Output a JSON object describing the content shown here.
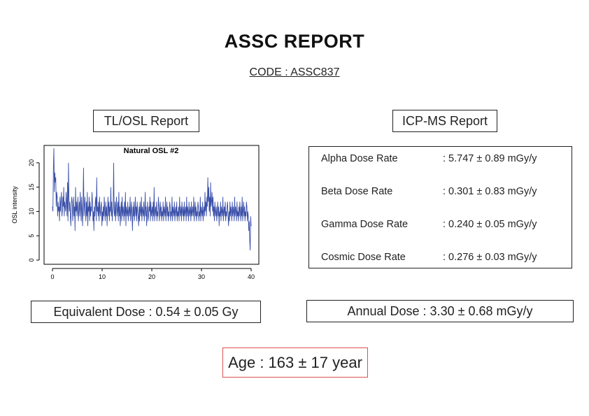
{
  "report": {
    "title": "ASSC REPORT",
    "code": "CODE : ASSC837"
  },
  "tl_osl": {
    "label": "TL/OSL Report"
  },
  "icp_ms": {
    "label": "ICP-MS Report",
    "rows": [
      {
        "label": "Alpha Dose Rate",
        "value": ": 5.747 ± 0.89 mGy/y"
      },
      {
        "label": "Beta Dose Rate",
        "value": ": 0.301 ± 0.83 mGy/y"
      },
      {
        "label": "Gamma Dose Rate",
        "value": ": 0.240 ± 0.05 mGy/y"
      },
      {
        "label": "Cosmic Dose Rate",
        "value": ": 0.276 ± 0.03 mGy/y"
      }
    ]
  },
  "results": {
    "equivalent_dose": "Equivalent Dose : 0.54 ± 0.05 Gy",
    "annual_dose": "Annual Dose : 3.30 ± 0.68 mGy/y",
    "age": "Age : 163 ± 17 year",
    "age_border_color": "#d9534f"
  },
  "chart_data": {
    "type": "line",
    "title": "Natural OSL #2",
    "xlabel": "",
    "ylabel": "OSL intensity",
    "xlim": [
      0,
      40
    ],
    "ylim": [
      0,
      23
    ],
    "xticks": [
      0,
      10,
      20,
      30,
      40
    ],
    "yticks": [
      0,
      5,
      10,
      15,
      20
    ],
    "line_color": "#3a4fa8",
    "grid": false,
    "x_step": 0.1,
    "y": [
      11,
      10,
      19,
      23,
      14,
      18,
      16,
      17,
      11,
      14,
      13,
      9,
      12,
      10,
      11,
      8,
      13,
      10,
      12,
      14,
      9,
      10,
      13,
      11,
      15,
      9,
      12,
      11,
      10,
      14,
      12,
      9,
      16,
      8,
      20,
      13,
      10,
      12,
      9,
      7,
      11,
      13,
      12,
      8,
      10,
      13,
      9,
      11,
      6,
      15,
      10,
      12,
      9,
      11,
      13,
      8,
      10,
      12,
      9,
      14,
      11,
      8,
      13,
      10,
      7,
      12,
      19,
      9,
      11,
      13,
      10,
      8,
      12,
      9,
      14,
      7,
      11,
      10,
      13,
      8,
      12,
      9,
      11,
      10,
      14,
      12,
      8,
      10,
      6,
      11,
      9,
      12,
      13,
      8,
      17,
      10,
      11,
      9,
      12,
      8,
      13,
      10,
      9,
      11,
      12,
      7,
      10,
      8,
      11,
      9,
      13,
      10,
      8,
      12,
      9,
      11,
      7,
      10,
      13,
      9,
      12,
      8,
      11,
      10,
      15,
      9,
      12,
      8,
      10,
      11,
      20,
      10,
      9,
      12,
      8,
      11,
      13,
      9,
      10,
      12,
      8,
      14,
      9,
      11,
      7,
      10,
      12,
      8,
      13,
      9,
      11,
      10,
      8,
      12,
      9,
      14,
      7,
      11,
      10,
      9,
      12,
      8,
      10,
      11,
      9,
      13,
      8,
      10,
      12,
      9,
      6,
      11,
      9,
      12,
      8,
      10,
      13,
      9,
      11,
      8,
      12,
      10,
      9,
      7,
      11,
      8,
      12,
      10,
      9,
      13,
      8,
      11,
      10,
      9,
      12,
      8,
      10,
      14,
      9,
      11,
      7,
      10,
      12,
      8,
      9,
      11,
      10,
      13,
      8,
      12,
      9,
      10,
      11,
      8,
      12,
      9,
      15,
      8,
      10,
      11,
      9,
      12,
      8,
      10,
      9,
      13,
      11,
      8,
      10,
      12,
      9,
      11,
      8,
      10,
      9,
      12,
      8,
      11,
      10,
      9,
      13,
      8,
      10,
      12,
      9,
      11,
      8,
      10,
      9,
      12,
      11,
      8,
      10,
      9,
      13,
      8,
      11,
      10,
      9,
      12,
      8,
      10,
      11,
      9,
      12,
      8,
      10,
      9,
      11,
      8,
      13,
      10,
      9,
      11,
      8,
      12,
      10,
      9,
      11,
      8,
      12,
      9,
      10,
      11,
      8,
      13,
      9,
      11,
      10,
      8,
      12,
      9,
      10,
      11,
      8,
      12,
      9,
      10,
      11,
      9,
      13,
      8,
      10,
      12,
      9,
      11,
      8,
      10,
      9,
      12,
      11,
      8,
      10,
      9,
      13,
      8,
      11,
      10,
      9,
      12,
      8,
      10,
      11,
      9,
      14,
      10,
      12,
      9,
      13,
      11,
      17,
      12,
      15,
      10,
      13,
      9,
      16,
      11,
      12,
      14,
      10,
      13,
      9,
      11,
      8,
      12,
      10,
      9,
      11,
      8,
      10,
      12,
      9,
      11,
      7,
      10,
      9,
      12,
      8,
      11,
      10,
      9,
      13,
      8,
      10,
      11,
      9,
      12,
      8,
      10,
      9,
      11,
      12,
      9,
      7,
      10,
      8,
      12,
      9,
      11,
      10,
      8,
      12,
      9,
      11,
      10,
      8,
      13,
      9,
      11,
      10,
      8,
      12,
      9,
      10,
      8,
      11,
      9,
      12,
      10,
      8,
      11,
      9,
      13,
      8,
      10,
      12,
      9,
      11,
      8,
      10,
      9,
      12,
      11,
      8,
      10,
      9,
      6,
      8,
      4,
      2,
      9,
      7
    ]
  }
}
